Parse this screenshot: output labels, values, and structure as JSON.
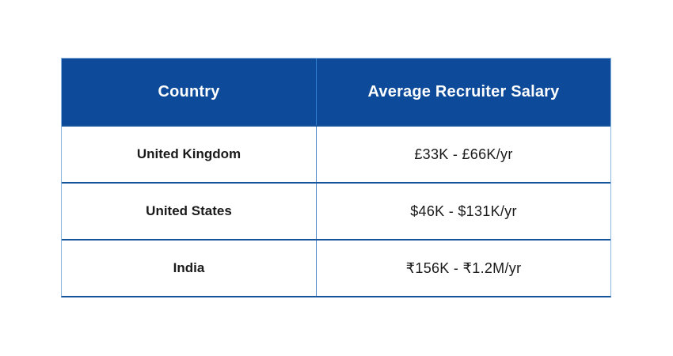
{
  "chart_data": {
    "type": "table",
    "columns": [
      "Country",
      "Average Recruiter Salary"
    ],
    "rows": [
      [
        "United Kingdom",
        "£33K - £66K/yr"
      ],
      [
        "United States",
        "$46K - $131K/yr"
      ],
      [
        "India",
        "₹156K - ₹1.2M/yr"
      ]
    ]
  },
  "colors": {
    "header_bg": "#0d4a99",
    "header_text": "#ffffff",
    "header_divider": "#3380d0",
    "row_divider": "#15549a",
    "outer_border": "#8ab4e0",
    "body_divider": "#4a86c8",
    "body_text": "#1a1a1a",
    "background": "#ffffff"
  }
}
